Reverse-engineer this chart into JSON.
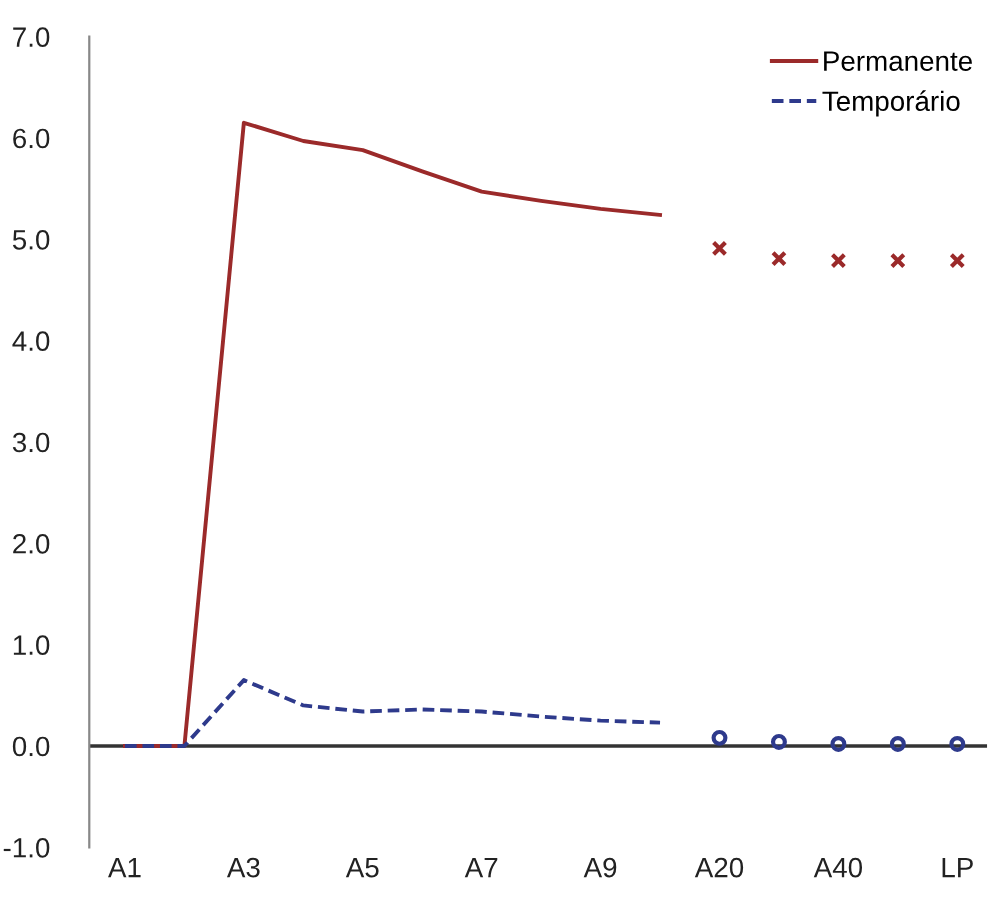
{
  "chart_data": {
    "type": "line",
    "categories": [
      "A1",
      null,
      "A3",
      null,
      "A5",
      null,
      "A7",
      null,
      "A9",
      null,
      "A20",
      null,
      "A40",
      null,
      "LP"
    ],
    "series": [
      {
        "name": "Permanente",
        "color": "#9b2a2a",
        "line_style": "solid",
        "marker": "none",
        "values": [
          0,
          0,
          6.15,
          5.97,
          5.88,
          5.67,
          5.47,
          5.38,
          5.3,
          5.24,
          null,
          null,
          null,
          null,
          null
        ]
      },
      {
        "name": "Temporário",
        "color": "#2e3a8c",
        "line_style": "dashed",
        "marker": "none",
        "values": [
          0,
          0,
          0.65,
          0.4,
          0.34,
          0.36,
          0.34,
          0.29,
          0.25,
          0.23,
          null,
          null,
          null,
          null,
          null
        ]
      },
      {
        "type": "scatter",
        "color": "#9b2a2a",
        "marker": "cross",
        "values": [
          null,
          null,
          null,
          null,
          null,
          null,
          null,
          null,
          null,
          null,
          4.91,
          4.81,
          4.79,
          4.79,
          4.79
        ]
      },
      {
        "type": "scatter",
        "color": "#2e3a8c",
        "marker": "circle",
        "values": [
          null,
          null,
          null,
          null,
          null,
          null,
          null,
          null,
          null,
          null,
          0.08,
          0.04,
          0.02,
          0.02,
          0.02
        ]
      }
    ],
    "ylim": [
      -1,
      7
    ],
    "yticks": [
      {
        "value": -1,
        "label": "-1.0"
      },
      {
        "value": 0,
        "label": "0.0"
      },
      {
        "value": 1,
        "label": "1.0"
      },
      {
        "value": 2,
        "label": "2.0"
      },
      {
        "value": 3,
        "label": "3.0"
      },
      {
        "value": 4,
        "label": "4.0"
      },
      {
        "value": 5,
        "label": "5.0"
      },
      {
        "value": 6,
        "label": "6.0"
      },
      {
        "value": 7,
        "label": "7.0"
      }
    ],
    "ref_lines": [
      {
        "axis": "y",
        "value": 0,
        "color": "#333333"
      }
    ],
    "grid": false,
    "legend": "top right"
  }
}
